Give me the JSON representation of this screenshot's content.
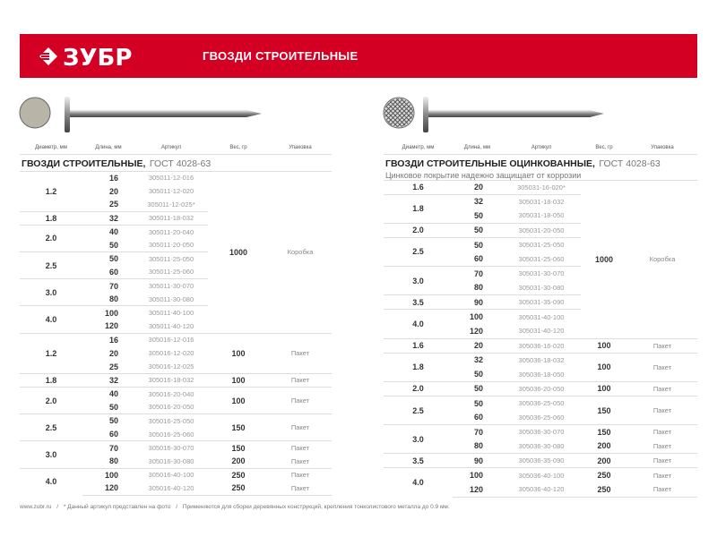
{
  "brand": {
    "logo_text": "ЗУБР",
    "title": "ГВОЗДИ СТРОИТЕЛЬНЫЕ",
    "color": "#d40024"
  },
  "columns": [
    "Диаметр, мм",
    "Длина, мм",
    "Артикул",
    "Вес, гр",
    "Упаковка"
  ],
  "tables": [
    {
      "title": "ГВОЗДИ СТРОИТЕЛЬНЫЕ,",
      "gost": "ГОСТ 4028-63",
      "subtitle": "",
      "blocks": [
        {
          "w": "1000",
          "p": "Коробка",
          "groups": [
            {
              "d": "1.2",
              "items": [
                {
                  "l": "16",
                  "a": "305011-12-016"
                },
                {
                  "l": "20",
                  "a": "305011-12-020"
                },
                {
                  "l": "25",
                  "a": "305011-12-025*"
                }
              ]
            },
            {
              "d": "1.8",
              "items": [
                {
                  "l": "32",
                  "a": "305011-18-032"
                }
              ]
            },
            {
              "d": "2.0",
              "items": [
                {
                  "l": "40",
                  "a": "305011-20-040"
                },
                {
                  "l": "50",
                  "a": "305011-20-050"
                }
              ]
            },
            {
              "d": "2.5",
              "items": [
                {
                  "l": "50",
                  "a": "305011-25-050"
                },
                {
                  "l": "60",
                  "a": "305011-25-060"
                }
              ]
            },
            {
              "d": "3.0",
              "items": [
                {
                  "l": "70",
                  "a": "305011-30-070"
                },
                {
                  "l": "80",
                  "a": "305011-30-080"
                }
              ]
            },
            {
              "d": "4.0",
              "items": [
                {
                  "l": "100",
                  "a": "305011-40-100"
                },
                {
                  "l": "120",
                  "a": "305011-40-120"
                }
              ]
            }
          ]
        },
        {
          "groups": [
            {
              "d": "1.2",
              "w": "100",
              "p": "Пакет",
              "items": [
                {
                  "l": "16",
                  "a": "305016-12-016"
                },
                {
                  "l": "20",
                  "a": "305016-12-020"
                },
                {
                  "l": "25",
                  "a": "305016-12-025"
                }
              ]
            },
            {
              "d": "1.8",
              "w": "100",
              "p": "Пакет",
              "items": [
                {
                  "l": "32",
                  "a": "305016-18-032"
                }
              ]
            },
            {
              "d": "2.0",
              "w": "100",
              "p": "Пакет",
              "items": [
                {
                  "l": "40",
                  "a": "305016-20-040"
                },
                {
                  "l": "50",
                  "a": "305016-20-050"
                }
              ]
            },
            {
              "d": "2.5",
              "w": "150",
              "p": "Пакет",
              "items": [
                {
                  "l": "50",
                  "a": "305016-25-050"
                },
                {
                  "l": "60",
                  "a": "305016-25-060"
                }
              ]
            },
            {
              "d": "3.0",
              "items": [
                {
                  "l": "70",
                  "a": "305016-30-070",
                  "w": "150",
                  "p": "Пакет"
                },
                {
                  "l": "80",
                  "a": "305016-30-080",
                  "w": "200",
                  "p": "Пакет"
                }
              ]
            },
            {
              "d": "4.0",
              "items": [
                {
                  "l": "100",
                  "a": "305016-40-100",
                  "w": "250",
                  "p": "Пакет"
                },
                {
                  "l": "120",
                  "a": "305016-40-120",
                  "w": "250",
                  "p": "Пакет"
                }
              ]
            }
          ]
        }
      ]
    },
    {
      "title": "ГВОЗДИ СТРОИТЕЛЬНЫЕ ОЦИНКОВАННЫЕ,",
      "gost": "ГОСТ 4028-63",
      "subtitle": "Цинковое покрытие надежно защищает от коррозии",
      "blocks": [
        {
          "w": "1000",
          "p": "Коробка",
          "groups": [
            {
              "d": "1.6",
              "items": [
                {
                  "l": "20",
                  "a": "305031-16-020*"
                }
              ]
            },
            {
              "d": "1.8",
              "items": [
                {
                  "l": "32",
                  "a": "305031-18-032"
                },
                {
                  "l": "50",
                  "a": "305031-18-050"
                }
              ]
            },
            {
              "d": "2.0",
              "items": [
                {
                  "l": "50",
                  "a": "305031-20-050"
                }
              ]
            },
            {
              "d": "2.5",
              "items": [
                {
                  "l": "50",
                  "a": "305031-25-050"
                },
                {
                  "l": "60",
                  "a": "305031-25-060"
                }
              ]
            },
            {
              "d": "3.0",
              "items": [
                {
                  "l": "70",
                  "a": "305031-30-070"
                },
                {
                  "l": "80",
                  "a": "305031-30-080"
                }
              ]
            },
            {
              "d": "3.5",
              "items": [
                {
                  "l": "90",
                  "a": "305031-35-090"
                }
              ]
            },
            {
              "d": "4.0",
              "items": [
                {
                  "l": "100",
                  "a": "305031-40-100"
                },
                {
                  "l": "120",
                  "a": "305031-40-120"
                }
              ]
            }
          ]
        },
        {
          "groups": [
            {
              "d": "1.6",
              "w": "100",
              "p": "Пакет",
              "items": [
                {
                  "l": "20",
                  "a": "305036-16-020"
                }
              ]
            },
            {
              "d": "1.8",
              "w": "100",
              "p": "Пакет",
              "items": [
                {
                  "l": "32",
                  "a": "305036-18-032"
                },
                {
                  "l": "50",
                  "a": "305036-18-050"
                }
              ]
            },
            {
              "d": "2.0",
              "w": "100",
              "p": "Пакет",
              "items": [
                {
                  "l": "50",
                  "a": "305036-20-050"
                }
              ]
            },
            {
              "d": "2.5",
              "w": "150",
              "p": "Пакет",
              "items": [
                {
                  "l": "50",
                  "a": "305036-25-050"
                },
                {
                  "l": "60",
                  "a": "305036-25-060"
                }
              ]
            },
            {
              "d": "3.0",
              "items": [
                {
                  "l": "70",
                  "a": "305036-30-070",
                  "w": "150",
                  "p": "Пакет"
                },
                {
                  "l": "80",
                  "a": "305036-30-080",
                  "w": "200",
                  "p": "Пакет"
                }
              ]
            },
            {
              "d": "3.5",
              "w": "200",
              "p": "Пакет",
              "items": [
                {
                  "l": "90",
                  "a": "305036-35-090"
                }
              ]
            },
            {
              "d": "4.0",
              "items": [
                {
                  "l": "100",
                  "a": "305036-40-100",
                  "w": "250",
                  "p": "Пакет"
                },
                {
                  "l": "120",
                  "a": "305036-40-120",
                  "w": "250",
                  "p": "Пакет"
                }
              ]
            }
          ]
        }
      ]
    }
  ],
  "footer": [
    "www.zubr.ru",
    "/",
    "* Данный артикул представлен на фото",
    "/",
    "Применяются для сборки деревянных конструкций, крепления тонколистового металла до 0.9 мм."
  ]
}
